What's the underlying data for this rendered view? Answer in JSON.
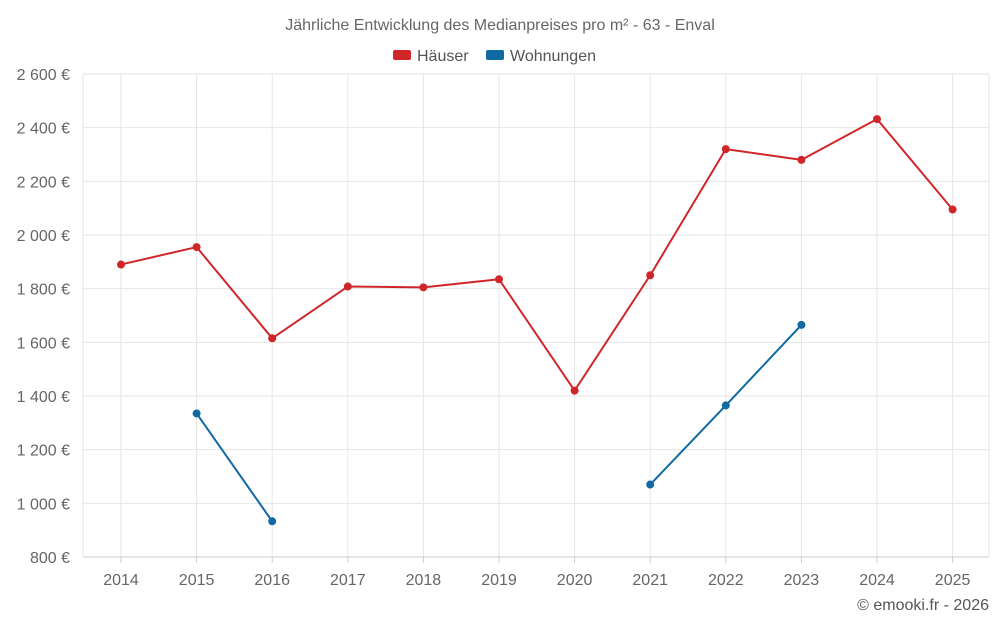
{
  "chart_data": {
    "type": "line",
    "title": "Jährliche Entwicklung des Medianpreises pro m² - 63 - Enval",
    "categories": [
      "2014",
      "2015",
      "2016",
      "2017",
      "2018",
      "2019",
      "2020",
      "2021",
      "2022",
      "2023",
      "2024",
      "2025"
    ],
    "ylim": [
      800,
      2600
    ],
    "yticks": [
      800,
      1000,
      1200,
      1400,
      1600,
      1800,
      2000,
      2200,
      2400,
      2600
    ],
    "ytick_labels": [
      "800 €",
      "1 000 €",
      "1 200 €",
      "1 400 €",
      "1 600 €",
      "1 800 €",
      "2 000 €",
      "2 200 €",
      "2 400 €",
      "2 600 €"
    ],
    "grid": true,
    "legend_position": "top-center",
    "series": [
      {
        "name": "Häuser",
        "color": "#d0262a",
        "values": [
          1890,
          1955,
          1615,
          1808,
          1805,
          1835,
          1420,
          1850,
          2320,
          2280,
          2432,
          2095
        ]
      },
      {
        "name": "Wohnungen",
        "color": "#0f6aa3",
        "values": [
          null,
          1335,
          933,
          null,
          null,
          null,
          null,
          1070,
          1365,
          1665,
          null,
          null
        ]
      }
    ],
    "credit": "© emooki.fr - 2026"
  }
}
